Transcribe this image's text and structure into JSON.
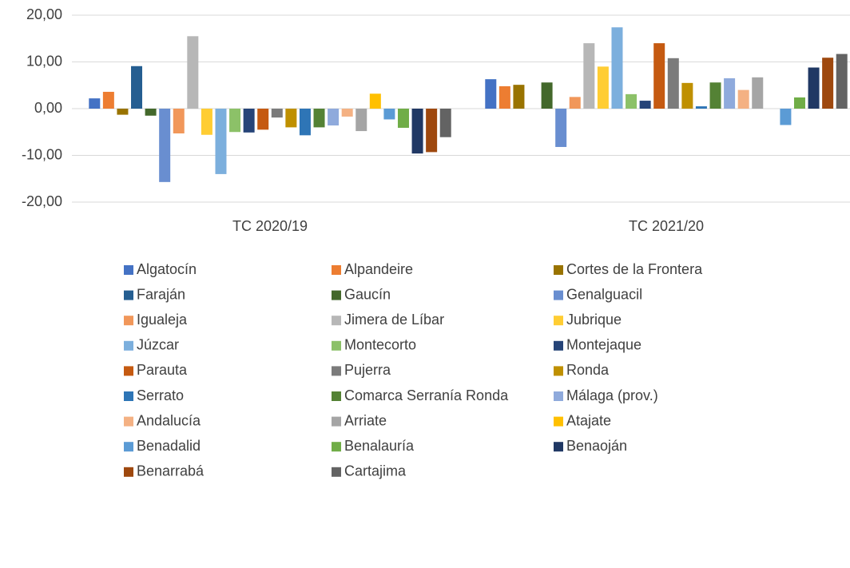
{
  "chart_data": {
    "type": "bar",
    "categories": [
      "TC 2020/19",
      "TC 2021/20"
    ],
    "series": [
      {
        "name": "Algatocín",
        "color": "#4472c4",
        "values": [
          2.2,
          6.3
        ]
      },
      {
        "name": "Alpandeire",
        "color": "#ed7d31",
        "values": [
          3.6,
          4.8
        ]
      },
      {
        "name": "Cortes de la Frontera",
        "color": "#997300",
        "values": [
          -1.3,
          5.1
        ]
      },
      {
        "name": "Faraján",
        "color": "#255e91",
        "values": [
          9.1,
          0
        ]
      },
      {
        "name": "Gaucín",
        "color": "#43682b",
        "values": [
          -1.5,
          5.6
        ]
      },
      {
        "name": "Genalguacil",
        "color": "#698ed0",
        "values": [
          -15.7,
          -8.2
        ]
      },
      {
        "name": "Igualeja",
        "color": "#f1975a",
        "values": [
          -5.3,
          2.5
        ]
      },
      {
        "name": "Jimera de Líbar",
        "color": "#b7b7b7",
        "values": [
          15.5,
          14
        ]
      },
      {
        "name": "Jubrique",
        "color": "#ffcd33",
        "values": [
          -5.6,
          9
        ]
      },
      {
        "name": "Júzcar",
        "color": "#7cafdd",
        "values": [
          -14,
          17.4
        ]
      },
      {
        "name": "Montecorto",
        "color": "#8cc168",
        "values": [
          -5,
          3.1
        ]
      },
      {
        "name": "Montejaque",
        "color": "#264478",
        "values": [
          -5.1,
          1.7
        ]
      },
      {
        "name": "Parauta",
        "color": "#c55a11",
        "values": [
          -4.5,
          14
        ]
      },
      {
        "name": "Pujerra",
        "color": "#7b7b7b",
        "values": [
          -1.9,
          10.8
        ]
      },
      {
        "name": "Ronda",
        "color": "#bf9000",
        "values": [
          -4,
          5.5
        ]
      },
      {
        "name": "Serrato",
        "color": "#2e75b6",
        "values": [
          -5.7,
          0.5
        ]
      },
      {
        "name": "Comarca Serranía Ronda",
        "color": "#548235",
        "values": [
          -4,
          5.6
        ]
      },
      {
        "name": "Málaga (prov.)",
        "color": "#8faadc",
        "values": [
          -3.6,
          6.5
        ]
      },
      {
        "name": "Andalucía",
        "color": "#f4b183",
        "values": [
          -1.7,
          4
        ]
      },
      {
        "name": "Arriate",
        "color": "#a5a5a5",
        "values": [
          -4.8,
          6.7
        ]
      },
      {
        "name": "Atajate",
        "color": "#ffc000",
        "values": [
          3.2,
          0
        ]
      },
      {
        "name": "Benadalid",
        "color": "#5b9bd5",
        "values": [
          -2.3,
          -3.5
        ]
      },
      {
        "name": "Benalauría",
        "color": "#70ad47",
        "values": [
          -4.1,
          2.4
        ]
      },
      {
        "name": "Benaoján",
        "color": "#203864",
        "values": [
          -9.6,
          8.8
        ]
      },
      {
        "name": "Benarrabá",
        "color": "#9e480e",
        "values": [
          -9.3,
          10.9
        ]
      },
      {
        "name": "Cartajima",
        "color": "#636363",
        "values": [
          -6.1,
          11.7
        ]
      }
    ],
    "ylim": [
      -20,
      20
    ],
    "yticks": [
      {
        "value": -20,
        "label": "-20,00"
      },
      {
        "value": -10,
        "label": "-10,00"
      },
      {
        "value": 0,
        "label": "0,00"
      },
      {
        "value": 10,
        "label": "10,00"
      },
      {
        "value": 20,
        "label": "20,00"
      }
    ],
    "grid": true,
    "legend": "bottom"
  }
}
